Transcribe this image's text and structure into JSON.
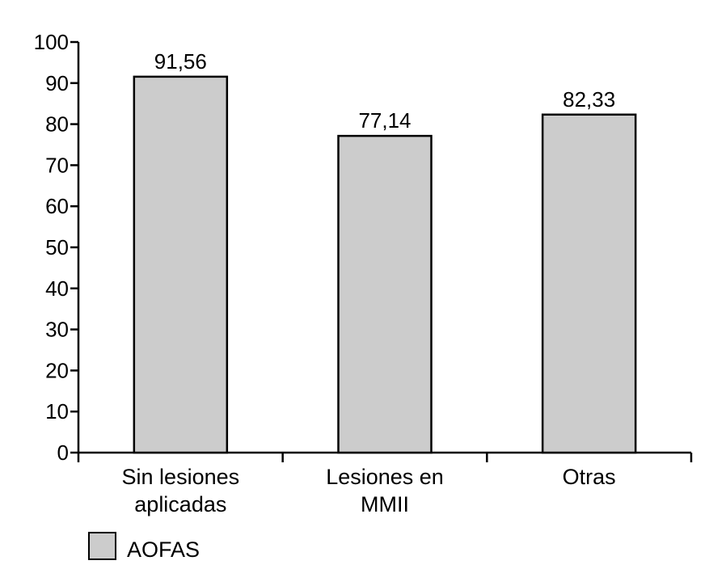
{
  "chart_data": {
    "type": "bar",
    "categories": [
      [
        "Sin lesiones",
        "aplicadas"
      ],
      [
        "Lesiones en",
        "MMII"
      ],
      [
        "Otras"
      ]
    ],
    "series": [
      {
        "name": "AOFAS",
        "values": [
          91.56,
          77.14,
          82.33
        ],
        "labels": [
          "91,56",
          "77,14",
          "82,33"
        ],
        "color": "#cccccc"
      }
    ],
    "ylim": [
      0,
      100
    ],
    "yticks": [
      0,
      10,
      20,
      30,
      40,
      50,
      60,
      70,
      80,
      90,
      100
    ],
    "grid": false,
    "legend": "bottom-left",
    "bar_outline_color": "#000000"
  }
}
